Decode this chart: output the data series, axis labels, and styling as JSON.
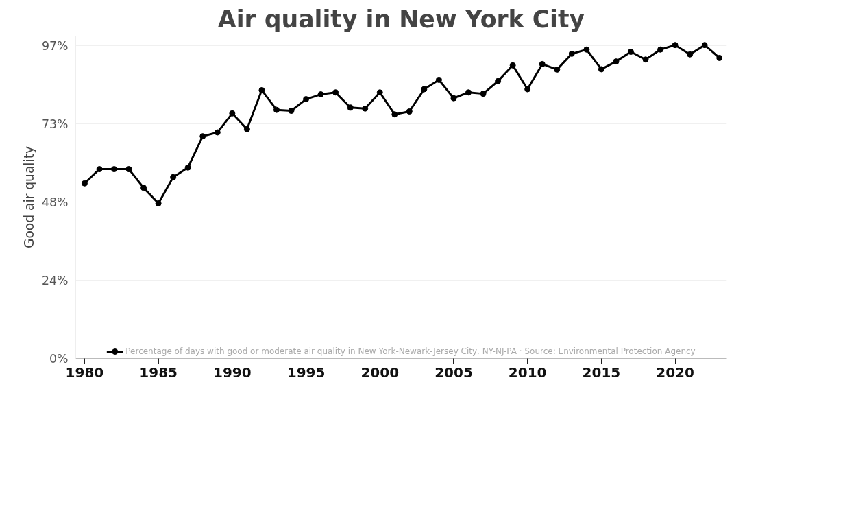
{
  "chart_data": {
    "type": "line",
    "title": "Air quality in New York City",
    "ylabel": "Good air quality",
    "x": [
      1980,
      1981,
      1982,
      1983,
      1984,
      1985,
      1986,
      1987,
      1988,
      1989,
      1990,
      1991,
      1992,
      1993,
      1994,
      1995,
      1996,
      1997,
      1998,
      1999,
      2000,
      2001,
      2002,
      2003,
      2004,
      2005,
      2006,
      2007,
      2008,
      2009,
      2010,
      2011,
      2012,
      2013,
      2014,
      2015,
      2016,
      2017,
      2018,
      2019,
      2020,
      2021,
      2022,
      2023
    ],
    "series": [
      {
        "name": "Percentage of days with good or moderate air quality in New York-Newark-Jersey City, NY-NJ-PA · Source: Environmental Protection Agency",
        "color": "#000000",
        "values": [
          54.3,
          58.7,
          58.7,
          58.7,
          52.9,
          48.1,
          56.2,
          59.2,
          68.9,
          70.1,
          76.0,
          71.1,
          83.2,
          77.1,
          76.8,
          80.4,
          81.9,
          82.5,
          77.8,
          77.5,
          82.5,
          75.7,
          76.6,
          83.5,
          86.4,
          80.7,
          82.5,
          82.1,
          86.0,
          90.9,
          83.5,
          91.3,
          89.6,
          94.5,
          95.8,
          89.7,
          92.1,
          95.1,
          92.7,
          95.8,
          97.2,
          94.3,
          97.2,
          93.2
        ]
      }
    ],
    "xlim": [
      1979.4,
      2023.5
    ],
    "xticks": [
      1980,
      1985,
      1990,
      1995,
      2000,
      2005,
      2010,
      2015,
      2020
    ],
    "ylim": [
      0,
      100
    ],
    "yticks": [
      {
        "value": 0,
        "label": "0%"
      },
      {
        "value": 24.25,
        "label": "24%"
      },
      {
        "value": 48.5,
        "label": "48%"
      },
      {
        "value": 72.75,
        "label": "73%"
      },
      {
        "value": 97,
        "label": "97%"
      }
    ],
    "grid": "y",
    "legend": "bottom",
    "marker": "circle",
    "line_style": "solid"
  }
}
